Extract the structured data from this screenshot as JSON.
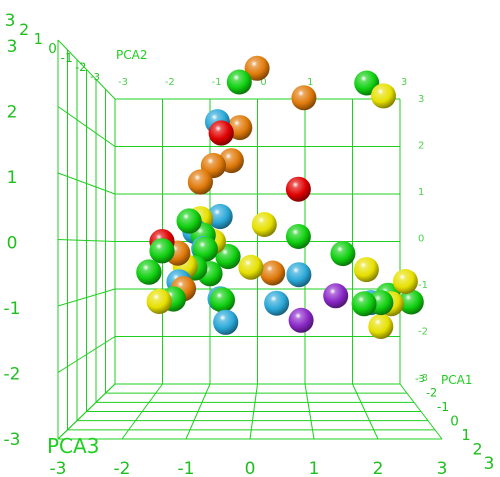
{
  "chart_data": {
    "type": "scatter",
    "projection": "3d",
    "xlabel": "PCA1",
    "ylabel": "PCA2",
    "zlabel": "PCA3",
    "grid": true,
    "colors": {
      "grid": "#1fcf1f",
      "labels": "#1fbf1f",
      "red": "#e00000",
      "orange": "#e07a0a",
      "yellow": "#e6e000",
      "green": "#10d010",
      "blue": "#2aa8d8",
      "purple": "#8a28c8"
    },
    "ticks": {
      "front_x": [
        "-3",
        "-2",
        "-1",
        "0",
        "1",
        "2",
        "3"
      ],
      "left_y": [
        "3",
        "2",
        "1",
        "0",
        "-1",
        "-2",
        "-3"
      ],
      "back_top": [
        "-3",
        "-2",
        "-1",
        "0",
        "1",
        "2",
        "3"
      ],
      "back_right": [
        "3",
        "2",
        "1",
        "0",
        "-1",
        "-2",
        "-3"
      ],
      "top_left_stack": [
        "3",
        "2",
        "1",
        "0",
        "-1",
        "-2",
        "-3"
      ],
      "bottom_right_stack": [
        "-3",
        "-2",
        "-1",
        "0",
        "1",
        "2",
        "3"
      ]
    },
    "points": [
      {
        "x": 0.06,
        "y": 3.03,
        "z": -0.05,
        "color": "orange"
      },
      {
        "x": -0.26,
        "y": 2.78,
        "z": 0.0,
        "color": "green"
      },
      {
        "x": 0.9,
        "y": 2.51,
        "z": -0.04,
        "color": "orange"
      },
      {
        "x": 2.03,
        "y": 2.77,
        "z": -0.04,
        "color": "green"
      },
      {
        "x": 2.33,
        "y": 2.54,
        "z": -0.02,
        "color": "yellow"
      },
      {
        "x": -0.65,
        "y": 2.08,
        "z": 0.05,
        "color": "blue"
      },
      {
        "x": -0.25,
        "y": 1.98,
        "z": 0.01,
        "color": "orange"
      },
      {
        "x": -0.58,
        "y": 1.88,
        "z": 0.06,
        "color": "red"
      },
      {
        "x": -0.4,
        "y": 1.4,
        "z": 0.02,
        "color": "orange"
      },
      {
        "x": -0.72,
        "y": 1.31,
        "z": 0.08,
        "color": "orange"
      },
      {
        "x": -0.95,
        "y": 1.02,
        "z": 0.1,
        "color": "orange"
      },
      {
        "x": 0.8,
        "y": 0.9,
        "z": 0.0,
        "color": "red"
      },
      {
        "x": -0.6,
        "y": 0.42,
        "z": 0.06,
        "color": "blue"
      },
      {
        "x": -1.15,
        "y": 0.34,
        "z": 0.12,
        "color": "green"
      },
      {
        "x": -0.95,
        "y": 0.38,
        "z": 0.1,
        "color": "yellow"
      },
      {
        "x": 0.19,
        "y": 0.28,
        "z": 0.0,
        "color": "yellow"
      },
      {
        "x": 0.8,
        "y": 0.07,
        "z": 0.0,
        "color": "green"
      },
      {
        "x": -1.05,
        "y": 0.16,
        "z": 0.1,
        "color": "blue"
      },
      {
        "x": -0.9,
        "y": 0.09,
        "z": 0.1,
        "color": "green"
      },
      {
        "x": -0.72,
        "y": -0.02,
        "z": 0.08,
        "color": "yellow"
      },
      {
        "x": -1.63,
        "y": -0.02,
        "z": 0.15,
        "color": "red"
      },
      {
        "x": -0.89,
        "y": -0.14,
        "z": 0.1,
        "color": "blue"
      },
      {
        "x": -0.86,
        "y": -0.15,
        "z": 0.1,
        "color": "green"
      },
      {
        "x": -1.35,
        "y": -0.22,
        "z": 0.14,
        "color": "orange"
      },
      {
        "x": -1.63,
        "y": -0.18,
        "z": 0.15,
        "color": "green"
      },
      {
        "x": -0.46,
        "y": -0.28,
        "z": 0.06,
        "color": "green"
      },
      {
        "x": 1.6,
        "y": -0.23,
        "z": 0.0,
        "color": "green"
      },
      {
        "x": -0.05,
        "y": -0.47,
        "z": 0.02,
        "color": "yellow"
      },
      {
        "x": -1.22,
        "y": -0.45,
        "z": 0.12,
        "color": "yellow"
      },
      {
        "x": -1.05,
        "y": -0.48,
        "z": 0.1,
        "color": "green"
      },
      {
        "x": 2.02,
        "y": -0.51,
        "z": 0.0,
        "color": "yellow"
      },
      {
        "x": -1.86,
        "y": -0.55,
        "z": 0.18,
        "color": "green"
      },
      {
        "x": -0.78,
        "y": -0.58,
        "z": 0.08,
        "color": "green"
      },
      {
        "x": 0.34,
        "y": -0.57,
        "z": 0.0,
        "color": "orange"
      },
      {
        "x": 0.81,
        "y": -0.6,
        "z": 0.0,
        "color": "blue"
      },
      {
        "x": -1.33,
        "y": -0.72,
        "z": 0.12,
        "color": "blue"
      },
      {
        "x": -1.25,
        "y": -0.84,
        "z": 0.12,
        "color": "orange"
      },
      {
        "x": 2.72,
        "y": -0.72,
        "z": 0.0,
        "color": "yellow"
      },
      {
        "x": 1.47,
        "y": -0.97,
        "z": 0.0,
        "color": "purple"
      },
      {
        "x": 2.41,
        "y": -0.96,
        "z": -0.02,
        "color": "green"
      },
      {
        "x": -1.43,
        "y": -1.02,
        "z": 0.13,
        "color": "green"
      },
      {
        "x": -1.68,
        "y": -1.06,
        "z": 0.15,
        "color": "yellow"
      },
      {
        "x": -0.6,
        "y": -1.02,
        "z": 0.06,
        "color": "blue"
      },
      {
        "x": -0.56,
        "y": -1.04,
        "z": 0.06,
        "color": "green"
      },
      {
        "x": 2.83,
        "y": -1.08,
        "z": -0.03,
        "color": "green"
      },
      {
        "x": 0.41,
        "y": -1.1,
        "z": 0.0,
        "color": "blue"
      },
      {
        "x": 2.1,
        "y": -1.09,
        "z": 0.0,
        "color": "blue"
      },
      {
        "x": 2.28,
        "y": -1.09,
        "z": 0.0,
        "color": "green"
      },
      {
        "x": 2.47,
        "y": -1.11,
        "z": -0.02,
        "color": "yellow"
      },
      {
        "x": 1.98,
        "y": -1.11,
        "z": 0.0,
        "color": "green"
      },
      {
        "x": 0.85,
        "y": -1.4,
        "z": 0.0,
        "color": "purple"
      },
      {
        "x": -0.5,
        "y": -1.43,
        "z": 0.06,
        "color": "blue"
      },
      {
        "x": 2.28,
        "y": -1.51,
        "z": -0.02,
        "color": "yellow"
      }
    ]
  }
}
